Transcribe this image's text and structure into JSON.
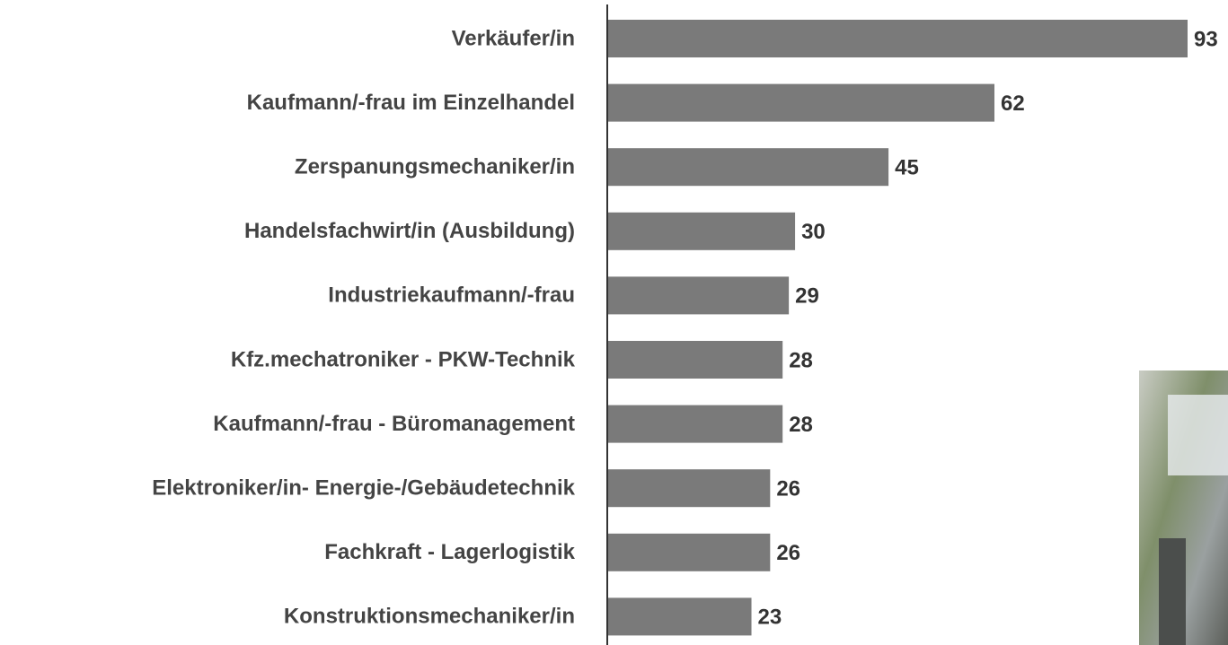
{
  "chart_data": {
    "type": "bar",
    "orientation": "horizontal",
    "categories": [
      "Verkäufer/in",
      "Kaufmann/-frau im Einzelhandel",
      "Zerspanungsmechaniker/in",
      "Handelsfachwirt/in (Ausbildung)",
      "Industriekaufmann/-frau",
      "Kfz.mechatroniker - PKW-Technik",
      "Kaufmann/-frau - Büromanagement",
      "Elektroniker/in- Energie-/Gebäudetechnik",
      "Fachkraft - Lagerlogistik",
      "Konstruktionsmechaniker/in"
    ],
    "values": [
      93,
      62,
      45,
      30,
      29,
      28,
      28,
      26,
      26,
      23
    ],
    "color": "#7a7a7a"
  }
}
